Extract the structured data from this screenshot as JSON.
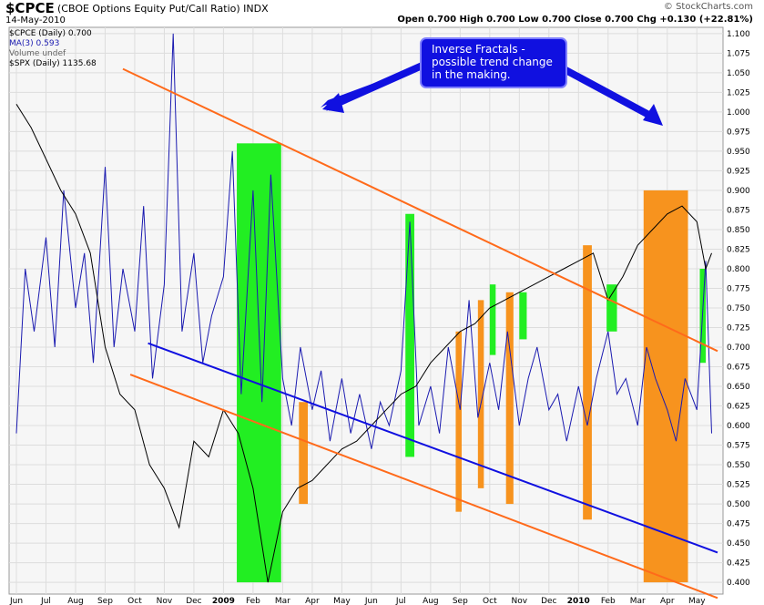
{
  "header": {
    "symbol": "$CPCE",
    "name": "(CBOE Options Equity Put/Call Ratio)  INDX",
    "date": "14-May-2010",
    "ohlc": "Open 0.700  High 0.700  Low 0.700  Close 0.700  Chg +0.130 (+22.81%)",
    "brand": "© StockCharts.com"
  },
  "legend": [
    {
      "text": "$CPCE (Daily) 0.700",
      "color": "#000000"
    },
    {
      "text": "MA(3) 0.593",
      "color": "#1a1ab0"
    },
    {
      "text": "Volume undef",
      "color": "#666666"
    },
    {
      "text": "$SPX (Daily) 1135.68",
      "color": "#000000"
    }
  ],
  "annotation": "Inverse Fractals -\npossible trend change\nin the making.",
  "colors": {
    "ma": "#1a1ab0",
    "spx": "#000000",
    "green": "#22ee22",
    "orange": "#f7931e",
    "channel_orange": "#ff6a1a",
    "channel_blue": "#1010e0",
    "callout_fill": "#1010e0",
    "grid": "#dddddd"
  },
  "chart_data": {
    "type": "line",
    "x_ticks": [
      "Jun",
      "Jul",
      "Aug",
      "Sep",
      "Oct",
      "Nov",
      "Dec",
      "2009",
      "Feb",
      "Mar",
      "Apr",
      "May",
      "Jun",
      "Jul",
      "Aug",
      "Sep",
      "Oct",
      "Nov",
      "Dec",
      "2010",
      "Feb",
      "Mar",
      "Apr",
      "May"
    ],
    "y_ticks": [
      "1.100",
      "1.075",
      "1.050",
      "1.025",
      "1.000",
      "0.975",
      "0.950",
      "0.925",
      "0.900",
      "0.875",
      "0.850",
      "0.825",
      "0.800",
      "0.775",
      "0.750",
      "0.725",
      "0.700",
      "0.675",
      "0.650",
      "0.625",
      "0.600",
      "0.575",
      "0.550",
      "0.525",
      "0.500",
      "0.475",
      "0.450",
      "0.425",
      "0.400"
    ],
    "ylim": [
      0.385,
      1.108
    ],
    "month_index_range": [
      0,
      23.7
    ],
    "series": [
      {
        "name": "MA(3)",
        "x": [
          0,
          0.3,
          0.6,
          1,
          1.3,
          1.6,
          2,
          2.3,
          2.6,
          3,
          3.3,
          3.6,
          4,
          4.3,
          4.6,
          5,
          5.3,
          5.6,
          6,
          6.3,
          6.6,
          7,
          7.3,
          7.6,
          8,
          8.3,
          8.6,
          9,
          9.3,
          9.6,
          10,
          10.3,
          10.6,
          11,
          11.3,
          11.6,
          12,
          12.3,
          12.6,
          13,
          13.3,
          13.6,
          14,
          14.3,
          14.6,
          15,
          15.3,
          15.6,
          16,
          16.3,
          16.6,
          17,
          17.3,
          17.6,
          18,
          18.3,
          18.6,
          19,
          19.3,
          19.6,
          20,
          20.3,
          20.6,
          21,
          21.3,
          21.6,
          22,
          22.3,
          22.6,
          23,
          23.3,
          23.5
        ],
        "values": [
          0.59,
          0.8,
          0.72,
          0.84,
          0.7,
          0.9,
          0.75,
          0.82,
          0.68,
          0.93,
          0.7,
          0.8,
          0.72,
          0.88,
          0.66,
          0.78,
          1.1,
          0.72,
          0.82,
          0.68,
          0.74,
          0.79,
          0.95,
          0.64,
          0.9,
          0.63,
          0.92,
          0.66,
          0.6,
          0.7,
          0.62,
          0.67,
          0.58,
          0.66,
          0.59,
          0.64,
          0.57,
          0.63,
          0.6,
          0.67,
          0.86,
          0.6,
          0.65,
          0.59,
          0.7,
          0.62,
          0.76,
          0.61,
          0.68,
          0.62,
          0.72,
          0.6,
          0.66,
          0.7,
          0.62,
          0.64,
          0.58,
          0.65,
          0.6,
          0.66,
          0.72,
          0.64,
          0.66,
          0.6,
          0.7,
          0.66,
          0.62,
          0.58,
          0.66,
          0.62,
          0.81,
          0.59
        ]
      },
      {
        "name": "$SPX",
        "x": [
          0,
          0.5,
          1,
          1.5,
          2,
          2.5,
          3,
          3.5,
          4,
          4.5,
          5,
          5.5,
          6,
          6.5,
          7,
          7.5,
          8,
          8.5,
          9,
          9.5,
          10,
          10.5,
          11,
          11.5,
          12,
          12.5,
          13,
          13.5,
          14,
          14.5,
          15,
          15.5,
          16,
          16.5,
          17,
          17.5,
          18,
          18.5,
          19,
          19.5,
          20,
          20.5,
          21,
          21.5,
          22,
          22.5,
          23,
          23.3,
          23.5
        ],
        "values": [
          1.01,
          0.98,
          0.94,
          0.9,
          0.87,
          0.82,
          0.7,
          0.64,
          0.62,
          0.55,
          0.52,
          0.47,
          0.58,
          0.56,
          0.62,
          0.59,
          0.52,
          0.4,
          0.49,
          0.52,
          0.53,
          0.55,
          0.57,
          0.58,
          0.6,
          0.62,
          0.64,
          0.65,
          0.68,
          0.7,
          0.72,
          0.73,
          0.75,
          0.76,
          0.77,
          0.78,
          0.79,
          0.8,
          0.81,
          0.82,
          0.76,
          0.79,
          0.83,
          0.85,
          0.87,
          0.88,
          0.86,
          0.8,
          0.82
        ]
      }
    ],
    "highlights": [
      {
        "color": "green",
        "x0": 7.45,
        "x1": 8.95,
        "y0": 0.4,
        "y1": 0.96
      },
      {
        "color": "orange",
        "x0": 9.55,
        "x1": 9.85,
        "y0": 0.5,
        "y1": 0.63
      },
      {
        "color": "green",
        "x0": 13.15,
        "x1": 13.45,
        "y0": 0.56,
        "y1": 0.87
      },
      {
        "color": "orange",
        "x0": 14.85,
        "x1": 15.05,
        "y0": 0.49,
        "y1": 0.72
      },
      {
        "color": "orange",
        "x0": 15.6,
        "x1": 15.8,
        "y0": 0.52,
        "y1": 0.76
      },
      {
        "color": "green",
        "x0": 16.0,
        "x1": 16.2,
        "y0": 0.69,
        "y1": 0.78
      },
      {
        "color": "orange",
        "x0": 16.55,
        "x1": 16.8,
        "y0": 0.5,
        "y1": 0.77
      },
      {
        "color": "green",
        "x0": 17.0,
        "x1": 17.25,
        "y0": 0.71,
        "y1": 0.77
      },
      {
        "color": "orange",
        "x0": 19.15,
        "x1": 19.45,
        "y0": 0.48,
        "y1": 0.83
      },
      {
        "color": "green",
        "x0": 19.95,
        "x1": 20.3,
        "y0": 0.72,
        "y1": 0.78
      },
      {
        "color": "orange",
        "x0": 21.2,
        "x1": 22.7,
        "y0": 0.4,
        "y1": 0.9
      },
      {
        "color": "green",
        "x0": 23.1,
        "x1": 23.3,
        "y0": 0.68,
        "y1": 0.8
      }
    ],
    "trendlines": [
      {
        "color": "channel_orange",
        "x0": 3.6,
        "y0": 1.055,
        "x1": 23.7,
        "y1": 0.695
      },
      {
        "color": "channel_orange",
        "x0": 3.85,
        "y0": 0.665,
        "x1": 23.7,
        "y1": 0.38
      },
      {
        "color": "channel_blue",
        "x0": 4.45,
        "y0": 0.705,
        "x1": 23.7,
        "y1": 0.438
      }
    ]
  }
}
